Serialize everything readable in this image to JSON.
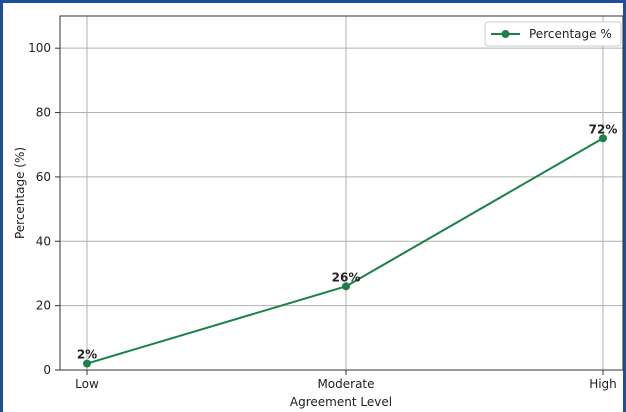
{
  "chart_data": {
    "type": "line",
    "categories": [
      "Low",
      "Moderate",
      "High"
    ],
    "series": [
      {
        "name": "Percentage %",
        "values": [
          2,
          26,
          72
        ],
        "color": "#1b8049"
      }
    ],
    "data_labels": [
      "2%",
      "26%",
      "72%"
    ],
    "xlabel": "Agreement Level",
    "ylabel": "Percentage (%)",
    "ylim": [
      0,
      110
    ],
    "yticks": [
      0,
      20,
      40,
      60,
      80,
      100
    ],
    "grid": true,
    "legend_position": "top-right"
  },
  "colors": {
    "frame_border": "#1f4e9b",
    "grid": "#b0b0b0",
    "axes": "#333333"
  }
}
